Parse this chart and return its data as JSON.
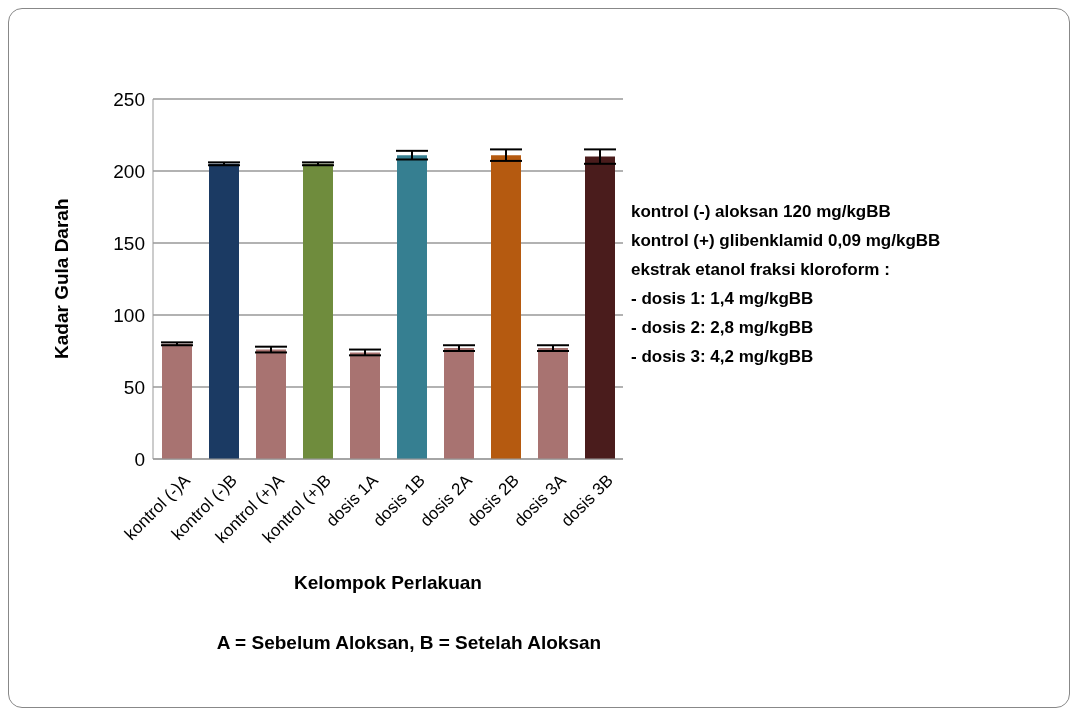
{
  "chart_data": {
    "type": "bar",
    "xlabel": "Kelompok Perlakuan",
    "ylabel": "Kadar Gula Darah",
    "categories": [
      "kontrol (-)A",
      "kontrol (-)B",
      "kontrol (+)A",
      "kontrol (+)B",
      "dosis 1A",
      "dosis 1B",
      "dosis 2A",
      "dosis 2B",
      "dosis 3A",
      "dosis 3B"
    ],
    "values": [
      80,
      205,
      76,
      205,
      74,
      211,
      77,
      211,
      77,
      210
    ],
    "errors": [
      1,
      1,
      2,
      1,
      2,
      3,
      2,
      4,
      2,
      5
    ],
    "colors": [
      "#a87371",
      "#1b3a63",
      "#a87371",
      "#6f8c3d",
      "#a87371",
      "#367f91",
      "#a87371",
      "#b55a10",
      "#a87371",
      "#4a1c1c"
    ],
    "ylim": [
      0,
      250
    ],
    "yticks": [
      0,
      50,
      100,
      150,
      200,
      250
    ],
    "grid": "y",
    "annotations": [
      "A = Sebelum Aloksan, B = Setelah Aloksan",
      "kontrol (-) aloksan 120 mg/kgBB",
      "kontrol (+) glibenklamid 0,09 mg/kgBB",
      "ekstrak etanol fraksi kloroform :",
      "- dosis 1: 1,4 mg/kgBB",
      "- dosis 2: 2,8 mg/kgBB",
      "- dosis 3: 4,2 mg/kgBB"
    ]
  }
}
